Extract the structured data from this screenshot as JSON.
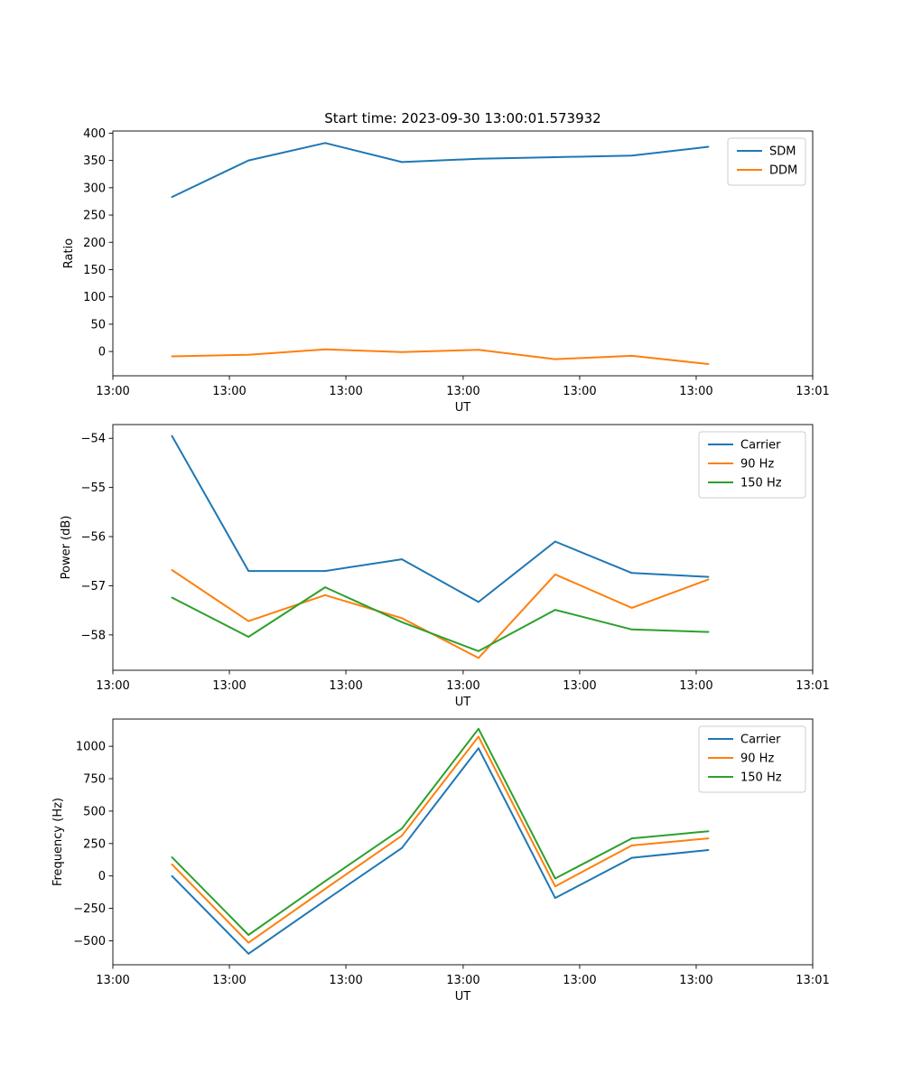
{
  "colors": {
    "c0": "#1f77b4",
    "c1": "#ff7f0e",
    "c2": "#2ca02c"
  },
  "chart_data": [
    {
      "type": "line",
      "title": "Start time: 2023-09-30 13:00:01.573932",
      "xlabel": "UT",
      "ylabel": "Ratio",
      "x": [
        1,
        2,
        3,
        4,
        5,
        6,
        7,
        8
      ],
      "xlim": [
        0.23,
        9.36
      ],
      "ylim": [
        -44.5,
        404
      ],
      "yticks": [
        0,
        50,
        100,
        150,
        200,
        250,
        300,
        350,
        400
      ],
      "ytick_labels": [
        "0",
        "50",
        "100",
        "150",
        "200",
        "250",
        "300",
        "350",
        "400"
      ],
      "xticks": [
        0.23,
        1.75,
        3.27,
        4.8,
        6.32,
        7.84,
        9.36
      ],
      "xtick_labels": [
        "13:00",
        "13:00",
        "13:00",
        "13:00",
        "13:00",
        "13:00",
        "13:01"
      ],
      "legend_position": "top-right",
      "series": [
        {
          "name": "SDM",
          "color": "c0",
          "values": [
            283,
            350,
            382,
            347,
            353,
            356,
            359,
            375
          ]
        },
        {
          "name": "DDM",
          "color": "c1",
          "values": [
            -9,
            -6,
            4,
            -1,
            3,
            -14,
            -8,
            -23
          ]
        }
      ]
    },
    {
      "type": "line",
      "title": "",
      "xlabel": "UT",
      "ylabel": "Power (dB)",
      "x": [
        1,
        2,
        3,
        4,
        5,
        6,
        7,
        8
      ],
      "xlim": [
        0.23,
        9.36
      ],
      "ylim": [
        -58.72,
        -53.72
      ],
      "yticks": [
        -58,
        -57,
        -56,
        -55,
        -54
      ],
      "ytick_labels": [
        "−58",
        "−57",
        "−56",
        "−55",
        "−54"
      ],
      "xticks": [
        0.23,
        1.75,
        3.27,
        4.8,
        6.32,
        7.84,
        9.36
      ],
      "xtick_labels": [
        "13:00",
        "13:00",
        "13:00",
        "13:00",
        "13:00",
        "13:00",
        "13:01"
      ],
      "legend_position": "top-right",
      "series": [
        {
          "name": "Carrier",
          "color": "c0",
          "values": [
            -53.95,
            -56.7,
            -56.7,
            -56.46,
            -57.33,
            -56.1,
            -56.74,
            -56.82
          ]
        },
        {
          "name": "90 Hz",
          "color": "c1",
          "values": [
            -56.68,
            -57.72,
            -57.19,
            -57.66,
            -58.47,
            -56.77,
            -57.45,
            -56.87
          ]
        },
        {
          "name": "150 Hz",
          "color": "c2",
          "values": [
            -57.24,
            -58.04,
            -57.03,
            -57.74,
            -58.33,
            -57.49,
            -57.89,
            -57.94
          ]
        }
      ]
    },
    {
      "type": "line",
      "title": "",
      "xlabel": "UT",
      "ylabel": "Frequency (Hz)",
      "x": [
        1,
        2,
        3,
        4,
        5,
        6,
        7,
        8
      ],
      "xlim": [
        0.23,
        9.36
      ],
      "ylim": [
        -685,
        1210
      ],
      "yticks": [
        -500,
        -250,
        0,
        250,
        500,
        750,
        1000
      ],
      "ytick_labels": [
        "−500",
        "−250",
        "0",
        "250",
        "500",
        "750",
        "1000"
      ],
      "xticks": [
        0.23,
        1.75,
        3.27,
        4.8,
        6.32,
        7.84,
        9.36
      ],
      "xtick_labels": [
        "13:00",
        "13:00",
        "13:00",
        "13:00",
        "13:00",
        "13:00",
        "13:01"
      ],
      "legend_position": "top-right",
      "series": [
        {
          "name": "Carrier",
          "color": "c0",
          "values": [
            0,
            -600,
            -190,
            215,
            985,
            -170,
            140,
            200
          ]
        },
        {
          "name": "90 Hz",
          "color": "c1",
          "values": [
            90,
            -515,
            -100,
            310,
            1075,
            -80,
            235,
            290
          ]
        },
        {
          "name": "150 Hz",
          "color": "c2",
          "values": [
            145,
            -455,
            -40,
            365,
            1135,
            -20,
            290,
            345
          ]
        }
      ]
    }
  ]
}
